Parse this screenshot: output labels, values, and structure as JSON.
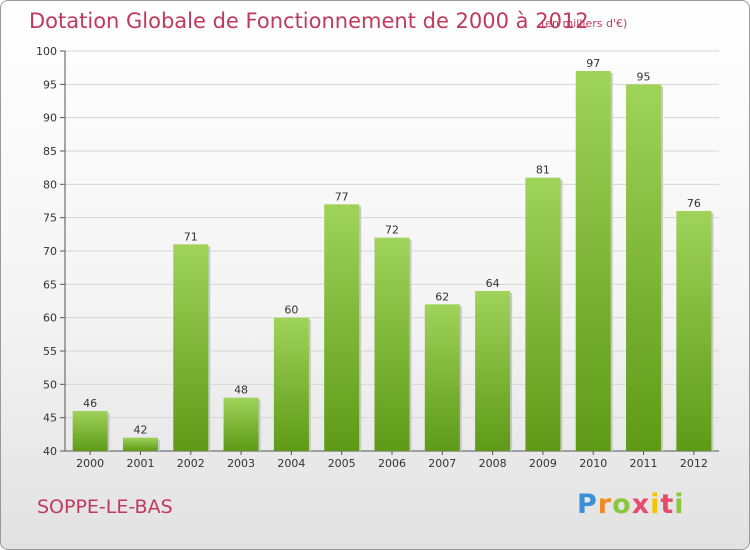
{
  "header": {
    "title": "Dotation Globale de Fonctionnement de 2000 à 2012",
    "subtitle": "(en milliers d'€)"
  },
  "footer": {
    "commune": "SOPPE-LE-BAS",
    "logo_text": "Proxiti"
  },
  "colors": {
    "bar_light": "#9fd35a",
    "bar_dark": "#5e9a17",
    "title": "#c0395e",
    "grid": "#d6d6d6"
  },
  "chart_data": {
    "type": "bar",
    "title": "Dotation Globale de Fonctionnement de 2000 à 2012",
    "subtitle": "(en milliers d'€)",
    "xlabel": "",
    "ylabel": "",
    "categories": [
      "2000",
      "2001",
      "2002",
      "2003",
      "2004",
      "2005",
      "2006",
      "2007",
      "2008",
      "2009",
      "2010",
      "2011",
      "2012"
    ],
    "values": [
      46,
      42,
      71,
      48,
      60,
      77,
      72,
      62,
      64,
      81,
      97,
      95,
      76
    ],
    "ylim": [
      40,
      100
    ],
    "yticks": [
      40,
      45,
      50,
      55,
      60,
      65,
      70,
      75,
      80,
      85,
      90,
      95,
      100
    ],
    "grid": true,
    "data_labels": true
  }
}
